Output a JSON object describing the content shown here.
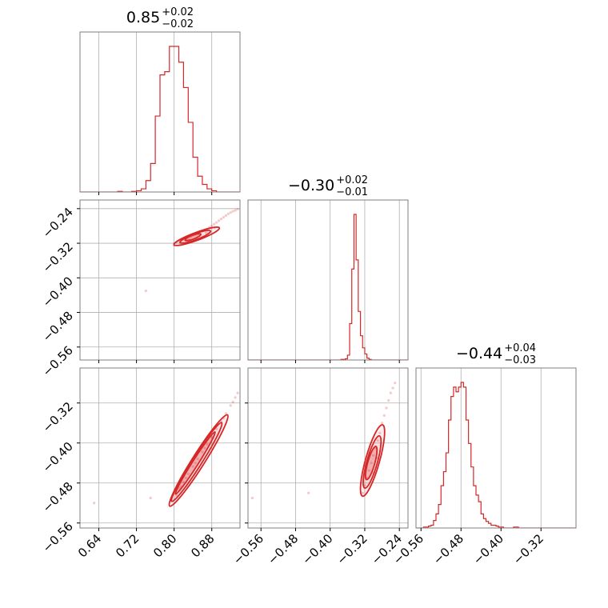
{
  "chart_data": {
    "type": "corner",
    "color": "#d62728",
    "grid": true,
    "variables": [
      {
        "range": [
          0.6,
          0.94
        ],
        "ticks": [
          0.64,
          0.72,
          0.8,
          0.88
        ],
        "tick_labels": [
          "0.64",
          "0.72",
          "0.80",
          "0.88"
        ],
        "title": {
          "median": "0.85",
          "plus": "+0.02",
          "minus": "−0.02"
        },
        "histogram": {
          "bin_start": 0.6,
          "bin_width": 0.01,
          "counts": [
            0,
            0,
            0,
            0,
            0,
            0,
            0,
            0,
            1,
            0,
            0,
            1,
            2,
            5,
            18,
            45,
            120,
            185,
            190,
            230,
            230,
            205,
            165,
            110,
            55,
            25,
            12,
            5,
            2,
            0,
            0,
            0,
            0,
            0
          ]
        }
      },
      {
        "range": [
          -0.59,
          -0.22
        ],
        "ticks": [
          -0.56,
          -0.48,
          -0.4,
          -0.32,
          -0.24
        ],
        "tick_labels": [
          "−0.56",
          "−0.48",
          "−0.40",
          "−0.32",
          "−0.24"
        ],
        "title": {
          "median": "−0.30",
          "plus": "+0.02",
          "minus": "−0.01"
        },
        "histogram": {
          "bin_start": -0.59,
          "bin_width": 0.005,
          "counts": [
            0,
            0,
            0,
            0,
            0,
            0,
            0,
            0,
            0,
            0,
            0,
            0,
            0,
            0,
            0,
            0,
            0,
            0,
            0,
            0,
            0,
            0,
            0,
            0,
            0,
            0,
            0,
            0,
            0,
            0,
            0,
            0,
            0,
            0,
            0,
            0,
            0,
            0,
            0,
            0,
            0,
            0,
            0,
            1,
            1,
            2,
            8,
            60,
            150,
            240,
            165,
            80,
            40,
            20,
            10,
            3,
            1,
            0,
            0,
            0,
            0,
            0,
            0,
            0,
            0,
            0,
            0,
            0,
            0,
            0,
            0,
            0,
            0,
            0
          ]
        }
      },
      {
        "range": [
          -0.57,
          -0.25
        ],
        "ticks": [
          -0.56,
          -0.48,
          -0.4,
          -0.32
        ],
        "tick_labels": [
          "−0.56",
          "−0.48",
          "−0.40",
          "−0.32"
        ],
        "title": {
          "median": "−0.44",
          "plus": "+0.04",
          "minus": "−0.03"
        },
        "histogram": {
          "bin_start": -0.57,
          "bin_width": 0.005,
          "counts": [
            0,
            0,
            0,
            1,
            1,
            2,
            3,
            8,
            15,
            25,
            45,
            60,
            80,
            115,
            140,
            150,
            145,
            150,
            155,
            150,
            115,
            90,
            65,
            45,
            35,
            28,
            15,
            10,
            7,
            5,
            3,
            3,
            2,
            1,
            1,
            0,
            0,
            0,
            0,
            1,
            1,
            0,
            0,
            0,
            0,
            0,
            0,
            0,
            0,
            0,
            0,
            0,
            0,
            0,
            0,
            0,
            0,
            0,
            0,
            0,
            0,
            0,
            0,
            0
          ]
        }
      }
    ],
    "pairs": [
      {
        "x_var": 0,
        "y_var": 1,
        "samples": [
          [
            0.8,
            -0.32
          ],
          [
            0.805,
            -0.318
          ],
          [
            0.81,
            -0.315
          ],
          [
            0.815,
            -0.317
          ],
          [
            0.82,
            -0.312
          ],
          [
            0.825,
            -0.31
          ],
          [
            0.83,
            -0.312
          ],
          [
            0.835,
            -0.305
          ],
          [
            0.84,
            -0.302
          ],
          [
            0.845,
            -0.3
          ],
          [
            0.85,
            -0.298
          ],
          [
            0.855,
            -0.295
          ],
          [
            0.86,
            -0.292
          ],
          [
            0.865,
            -0.29
          ],
          [
            0.87,
            -0.288
          ],
          [
            0.875,
            -0.283
          ],
          [
            0.88,
            -0.28
          ],
          [
            0.885,
            -0.276
          ],
          [
            0.89,
            -0.272
          ],
          [
            0.895,
            -0.268
          ],
          [
            0.9,
            -0.264
          ],
          [
            0.905,
            -0.26
          ],
          [
            0.91,
            -0.256
          ],
          [
            0.915,
            -0.252
          ],
          [
            0.92,
            -0.249
          ],
          [
            0.925,
            -0.246
          ],
          [
            0.93,
            -0.244
          ],
          [
            0.935,
            -0.241
          ],
          [
            0.74,
            -0.43
          ],
          [
            0.8,
            -0.325
          ],
          [
            0.812,
            -0.322
          ],
          [
            0.832,
            -0.318
          ],
          [
            0.848,
            -0.31
          ],
          [
            0.868,
            -0.296
          ],
          [
            0.886,
            -0.284
          ]
        ],
        "contours": [
          {
            "center": [
              0.84,
              -0.306
            ],
            "rx": 0.018,
            "ry": 0.0045,
            "angle_deg": 22
          },
          {
            "center": [
              0.845,
              -0.305
            ],
            "rx": 0.035,
            "ry": 0.007,
            "angle_deg": 22
          },
          {
            "center": [
              0.848,
              -0.304
            ],
            "rx": 0.052,
            "ry": 0.009,
            "angle_deg": 22
          }
        ]
      },
      {
        "x_var": 0,
        "y_var": 2,
        "samples": [
          [
            0.8,
            -0.5
          ],
          [
            0.81,
            -0.49
          ],
          [
            0.82,
            -0.478
          ],
          [
            0.83,
            -0.462
          ],
          [
            0.84,
            -0.447
          ],
          [
            0.85,
            -0.432
          ],
          [
            0.86,
            -0.418
          ],
          [
            0.87,
            -0.403
          ],
          [
            0.88,
            -0.388
          ],
          [
            0.89,
            -0.372
          ],
          [
            0.9,
            -0.357
          ],
          [
            0.91,
            -0.341
          ],
          [
            0.92,
            -0.325
          ],
          [
            0.93,
            -0.309
          ],
          [
            0.935,
            -0.3
          ],
          [
            0.75,
            -0.51
          ],
          [
            0.63,
            -0.52
          ],
          [
            0.805,
            -0.505
          ],
          [
            0.815,
            -0.487
          ],
          [
            0.825,
            -0.47
          ],
          [
            0.845,
            -0.44
          ],
          [
            0.865,
            -0.41
          ],
          [
            0.885,
            -0.38
          ],
          [
            0.905,
            -0.35
          ],
          [
            0.925,
            -0.318
          ]
        ],
        "contours": [
          {
            "center": [
              0.845,
              -0.44
            ],
            "rx": 0.075,
            "ry": 0.006,
            "angle_deg": 56
          },
          {
            "center": [
              0.848,
              -0.438
            ],
            "rx": 0.095,
            "ry": 0.01,
            "angle_deg": 56
          },
          {
            "center": [
              0.852,
              -0.435
            ],
            "rx": 0.11,
            "ry": 0.013,
            "angle_deg": 56
          }
        ]
      },
      {
        "x_var": 1,
        "y_var": 2,
        "samples": [
          [
            -0.325,
            -0.5
          ],
          [
            -0.32,
            -0.485
          ],
          [
            -0.315,
            -0.47
          ],
          [
            -0.31,
            -0.455
          ],
          [
            -0.305,
            -0.44
          ],
          [
            -0.3,
            -0.425
          ],
          [
            -0.295,
            -0.41
          ],
          [
            -0.29,
            -0.395
          ],
          [
            -0.285,
            -0.38
          ],
          [
            -0.28,
            -0.36
          ],
          [
            -0.275,
            -0.345
          ],
          [
            -0.27,
            -0.33
          ],
          [
            -0.265,
            -0.315
          ],
          [
            -0.26,
            -0.3
          ],
          [
            -0.255,
            -0.29
          ],
          [
            -0.25,
            -0.28
          ],
          [
            -0.32,
            -0.44
          ],
          [
            -0.31,
            -0.42
          ],
          [
            -0.3,
            -0.46
          ],
          [
            -0.29,
            -0.43
          ],
          [
            -0.45,
            -0.5
          ],
          [
            -0.58,
            -0.51
          ]
        ],
        "contours": [
          {
            "center": [
              -0.305,
              -0.44
            ],
            "rx": 0.035,
            "ry": 0.008,
            "angle_deg": 72
          },
          {
            "center": [
              -0.303,
              -0.438
            ],
            "rx": 0.055,
            "ry": 0.012,
            "angle_deg": 72
          },
          {
            "center": [
              -0.302,
              -0.435
            ],
            "rx": 0.075,
            "ry": 0.016,
            "angle_deg": 72
          }
        ]
      }
    ]
  }
}
